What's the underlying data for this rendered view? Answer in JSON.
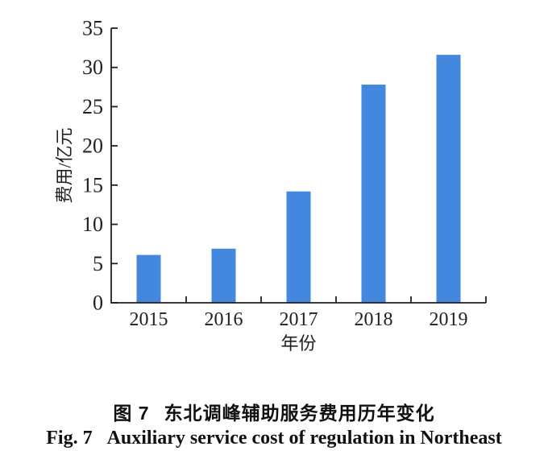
{
  "chart_data": {
    "type": "bar",
    "categories": [
      "2015",
      "2016",
      "2017",
      "2018",
      "2019"
    ],
    "values": [
      6.1,
      6.9,
      14.2,
      27.8,
      31.6
    ],
    "title": "",
    "xlabel": "年份",
    "ylabel": "费用/亿元",
    "ylim": [
      0,
      35
    ],
    "ytick_step": 5,
    "grid": false,
    "legend": "none",
    "bar_color": "#4487DE",
    "axis_color": "#231f20"
  },
  "caption": {
    "label_cn": "图 7",
    "text_cn": "东北调峰辅助服务费用历年变化",
    "label_en": "Fig. 7",
    "text_en": "Auxiliary service cost of regulation in Northeast"
  }
}
